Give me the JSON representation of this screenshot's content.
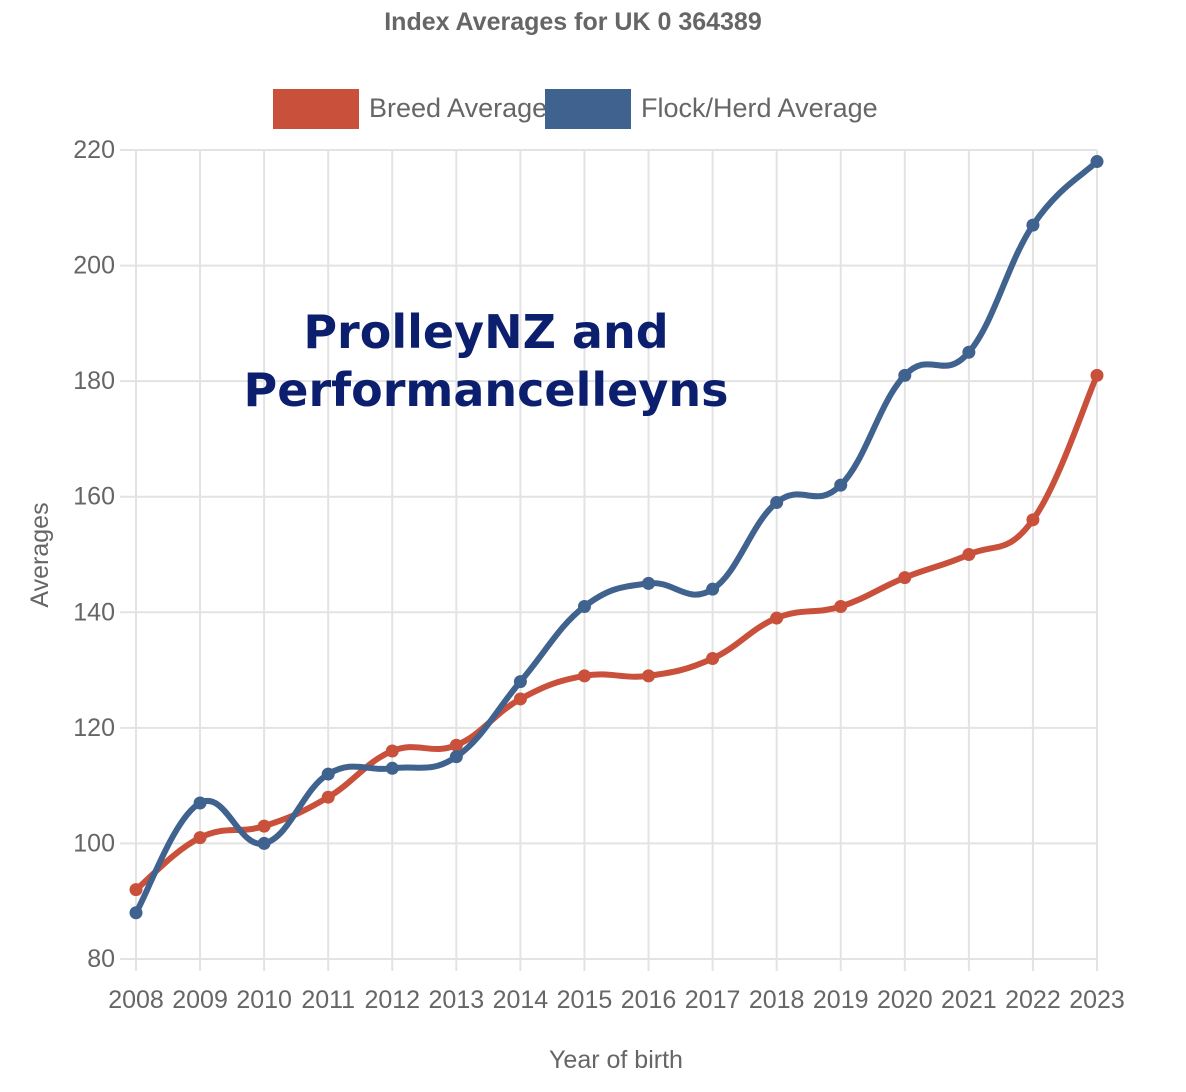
{
  "chart_data": {
    "type": "line",
    "title": "Index Averages for UK 0 364389",
    "xlabel": "Year of birth",
    "ylabel": "Averages",
    "x": [
      "2008",
      "2009",
      "2010",
      "2011",
      "2012",
      "2013",
      "2014",
      "2015",
      "2016",
      "2017",
      "2018",
      "2019",
      "2020",
      "2021",
      "2022",
      "2023"
    ],
    "ylim": [
      80,
      220
    ],
    "yticks": [
      "80",
      "100",
      "120",
      "140",
      "160",
      "180",
      "200",
      "220"
    ],
    "grid": true,
    "legend_position": "top",
    "series": [
      {
        "name": "Breed Average",
        "color": "#c9503a",
        "values": [
          92,
          101,
          103,
          108,
          116,
          117,
          125,
          129,
          129,
          132,
          139,
          141,
          146,
          150,
          156,
          181
        ]
      },
      {
        "name": "Flock/Herd Average",
        "color": "#3f628e",
        "values": [
          88,
          107,
          100,
          112,
          113,
          115,
          128,
          141,
          145,
          144,
          159,
          162,
          181,
          185,
          207,
          218
        ]
      }
    ],
    "overlay_text": [
      "ProlleyNZ and",
      "Performancelleyns"
    ]
  }
}
